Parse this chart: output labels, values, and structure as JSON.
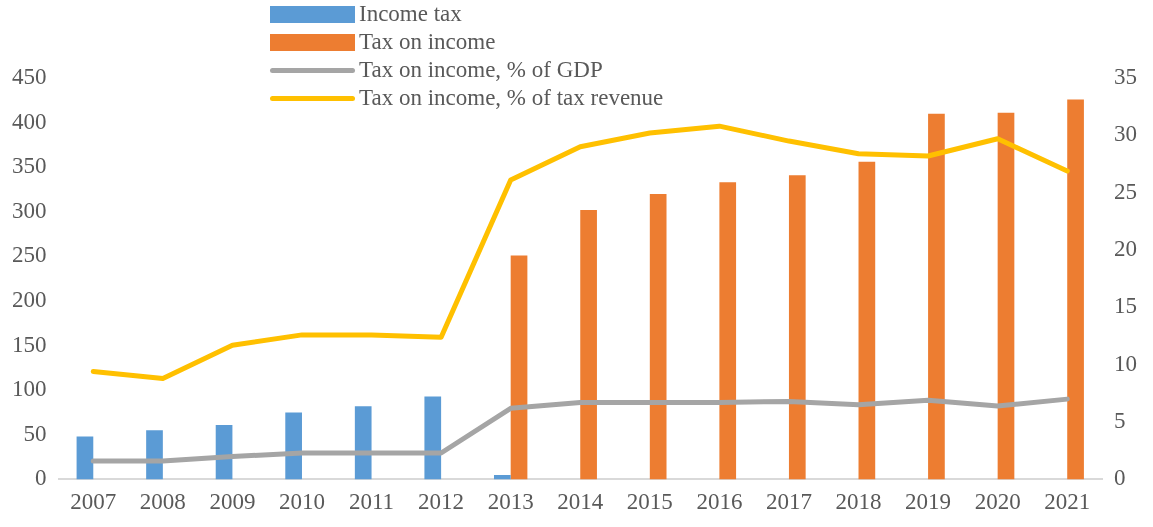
{
  "chart_data": {
    "type": "bar",
    "categories": [
      "2007",
      "2008",
      "2009",
      "2010",
      "2011",
      "2012",
      "2013",
      "2014",
      "2015",
      "2016",
      "2017",
      "2018",
      "2019",
      "2020",
      "2021"
    ],
    "series": [
      {
        "name": "Income tax",
        "color": "#5b9bd5",
        "values": [
          48,
          55,
          61,
          75,
          82,
          93,
          5,
          null,
          null,
          null,
          null,
          null,
          null,
          null,
          null
        ]
      },
      {
        "name": "Tax on income",
        "color": "#ed7d31",
        "values": [
          null,
          null,
          null,
          null,
          null,
          null,
          251,
          302,
          320,
          333,
          341,
          356,
          410,
          411,
          426
        ]
      },
      {
        "name": "Tax on income, % of GDP",
        "type": "line",
        "axis": "y2",
        "color": "#a5a5a5",
        "values": [
          1.6,
          1.6,
          2.0,
          2.3,
          2.3,
          2.3,
          6.2,
          6.7,
          6.7,
          6.7,
          6.8,
          6.5,
          6.9,
          6.4,
          7.0
        ]
      },
      {
        "name": "Tax on income, % of tax revenue",
        "type": "line",
        "axis": "y2",
        "color": "#ffc000",
        "values": [
          9.4,
          8.8,
          11.7,
          12.6,
          12.6,
          12.4,
          26.1,
          29.0,
          30.2,
          30.8,
          29.5,
          28.4,
          28.2,
          29.7,
          26.9
        ]
      }
    ],
    "ylim": [
      0,
      450
    ],
    "yticks": [
      0,
      50,
      100,
      150,
      200,
      250,
      300,
      350,
      400,
      450
    ],
    "y2lim": [
      0,
      35
    ],
    "y2ticks": [
      0,
      5,
      10,
      15,
      20,
      25,
      30,
      35
    ],
    "grid": false,
    "legend": "top",
    "marker": "none",
    "line_style": "solid"
  }
}
